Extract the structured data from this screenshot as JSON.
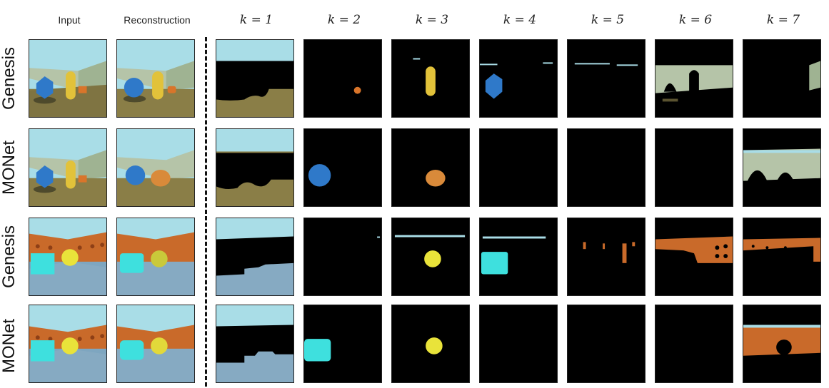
{
  "headers": {
    "input": "Input",
    "reconstruction": "Reconstruction",
    "k1": "k = 1",
    "k2": "k = 2",
    "k3": "k = 3",
    "k4": "k = 4",
    "k5": "k = 5",
    "k6": "k = 6",
    "k7": "k = 7"
  },
  "rows": [
    {
      "label": "Genesis",
      "scene": "objects-room"
    },
    {
      "label": "MONet",
      "scene": "objects-room"
    },
    {
      "label": "Genesis",
      "scene": "shapestacks-room"
    },
    {
      "label": "MONet",
      "scene": "shapestacks-room"
    }
  ],
  "colors": {
    "sky": "#a9dde7",
    "wall": "#b5c4a8",
    "floor": "#8a7e47",
    "blue": "#2f79c9",
    "yellow": "#e2c23a",
    "orange": "#d9752a",
    "brick": "#c96a2a",
    "cyan": "#3ee0de",
    "ball": "#e9e33a"
  }
}
